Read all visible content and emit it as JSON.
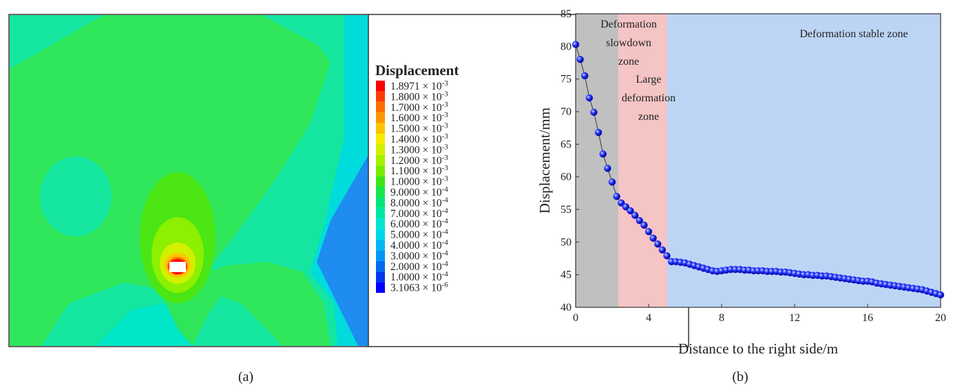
{
  "chart_data": [
    {
      "type": "contour",
      "legend_title": "Displacement",
      "levels": [
        {
          "color": "#ff0000",
          "mantissa": "1.8971 × 10",
          "exponent": "-3"
        },
        {
          "color": "#ff3c00",
          "mantissa": "1.8000 × 10",
          "exponent": "-3"
        },
        {
          "color": "#ff6e00",
          "mantissa": "1.7000 × 10",
          "exponent": "-3"
        },
        {
          "color": "#ff9600",
          "mantissa": "1.6000 × 10",
          "exponent": "-3"
        },
        {
          "color": "#ffc300",
          "mantissa": "1.5000 × 10",
          "exponent": "-3"
        },
        {
          "color": "#f5eb00",
          "mantissa": "1.4000 × 10",
          "exponent": "-3"
        },
        {
          "color": "#d2f000",
          "mantissa": "1.3000 × 10",
          "exponent": "-3"
        },
        {
          "color": "#a5f000",
          "mantissa": "1.2000 × 10",
          "exponent": "-3"
        },
        {
          "color": "#78eb00",
          "mantissa": "1.1000 × 10",
          "exponent": "-3"
        },
        {
          "color": "#3ce614",
          "mantissa": "1.0000 × 10",
          "exponent": "-3"
        },
        {
          "color": "#14e64b",
          "mantissa": "9.0000 × 10",
          "exponent": "-4"
        },
        {
          "color": "#00e678",
          "mantissa": "8.0000 × 10",
          "exponent": "-4"
        },
        {
          "color": "#00e6a5",
          "mantissa": "7.0000 × 10",
          "exponent": "-4"
        },
        {
          "color": "#00e6cd",
          "mantissa": "6.0000 × 10",
          "exponent": "-4"
        },
        {
          "color": "#00d7eb",
          "mantissa": "5.0000 × 10",
          "exponent": "-4"
        },
        {
          "color": "#00b9f5",
          "mantissa": "4.0000 × 10",
          "exponent": "-4"
        },
        {
          "color": "#0096f5",
          "mantissa": "3.0000 × 10",
          "exponent": "-4"
        },
        {
          "color": "#0069f0",
          "mantissa": "2.0000 × 10",
          "exponent": "-4"
        },
        {
          "color": "#0037f0",
          "mantissa": "1.0000 × 10",
          "exponent": "-4"
        },
        {
          "color": "#0000ff",
          "mantissa": "3.1063 × 10",
          "exponent": "-6"
        }
      ],
      "caption": "(a)"
    },
    {
      "type": "line",
      "xlabel": "Distance to the right side/m",
      "ylabel": "Displacement/mm",
      "xlim": [
        0,
        20
      ],
      "ylim": [
        40,
        85
      ],
      "xticks": [
        0,
        4,
        8,
        12,
        16,
        20
      ],
      "yticks": [
        40,
        45,
        50,
        55,
        60,
        65,
        70,
        75,
        80,
        85
      ],
      "zones": [
        {
          "from": 0,
          "to": 2.34,
          "color": "#c0c0c0",
          "label": [
            "Deformation",
            "slowdown",
            "zone"
          ]
        },
        {
          "from": 2.34,
          "to": 5,
          "color": "#f5c4c4",
          "label": [
            "Large",
            "deformation",
            "zone"
          ]
        },
        {
          "from": 5,
          "to": 20,
          "color": "#bdd5f5",
          "label": [
            "Deformation stable zone"
          ]
        }
      ],
      "x": [
        0,
        0.25,
        0.5,
        0.75,
        1,
        1.25,
        1.5,
        1.75,
        2,
        2.25,
        2.5,
        2.75,
        3,
        3.25,
        3.5,
        3.75,
        4,
        4.25,
        4.5,
        4.75,
        5,
        5.25,
        5.5,
        5.75,
        6,
        6.25,
        6.5,
        6.75,
        7,
        7.25,
        7.5,
        7.75,
        8,
        8.25,
        8.5,
        8.75,
        9,
        9.25,
        9.5,
        9.75,
        10,
        10.25,
        10.5,
        10.75,
        11,
        11.25,
        11.5,
        11.75,
        12,
        12.25,
        12.5,
        12.75,
        13,
        13.25,
        13.5,
        13.75,
        14,
        14.25,
        14.5,
        14.75,
        15,
        15.25,
        15.5,
        15.75,
        16,
        16.25,
        16.5,
        16.75,
        17,
        17.25,
        17.5,
        17.75,
        18,
        18.25,
        18.5,
        18.75,
        19,
        19.25,
        19.5,
        19.75,
        20
      ],
      "series": [
        {
          "color": "#0000ff",
          "values": [
            80.3,
            78.0,
            75.5,
            72.1,
            69.9,
            66.8,
            63.5,
            61.3,
            59.2,
            57.0,
            56.0,
            55.4,
            54.8,
            54.1,
            53.3,
            52.6,
            51.6,
            50.6,
            49.7,
            48.8,
            47.9,
            47.0,
            47.0,
            46.9,
            46.8,
            46.6,
            46.4,
            46.2,
            46.0,
            45.8,
            45.6,
            45.5,
            45.6,
            45.7,
            45.8,
            45.8,
            45.8,
            45.7,
            45.7,
            45.6,
            45.6,
            45.6,
            45.5,
            45.5,
            45.5,
            45.4,
            45.4,
            45.3,
            45.2,
            45.1,
            45.0,
            45.0,
            44.9,
            44.9,
            44.8,
            44.8,
            44.7,
            44.6,
            44.5,
            44.4,
            44.3,
            44.2,
            44.1,
            44.0,
            44.0,
            43.9,
            43.7,
            43.6,
            43.5,
            43.4,
            43.3,
            43.2,
            43.1,
            43.0,
            42.9,
            42.8,
            42.7,
            42.5,
            42.3,
            42.1,
            41.9
          ]
        }
      ],
      "caption": "(b)"
    }
  ]
}
